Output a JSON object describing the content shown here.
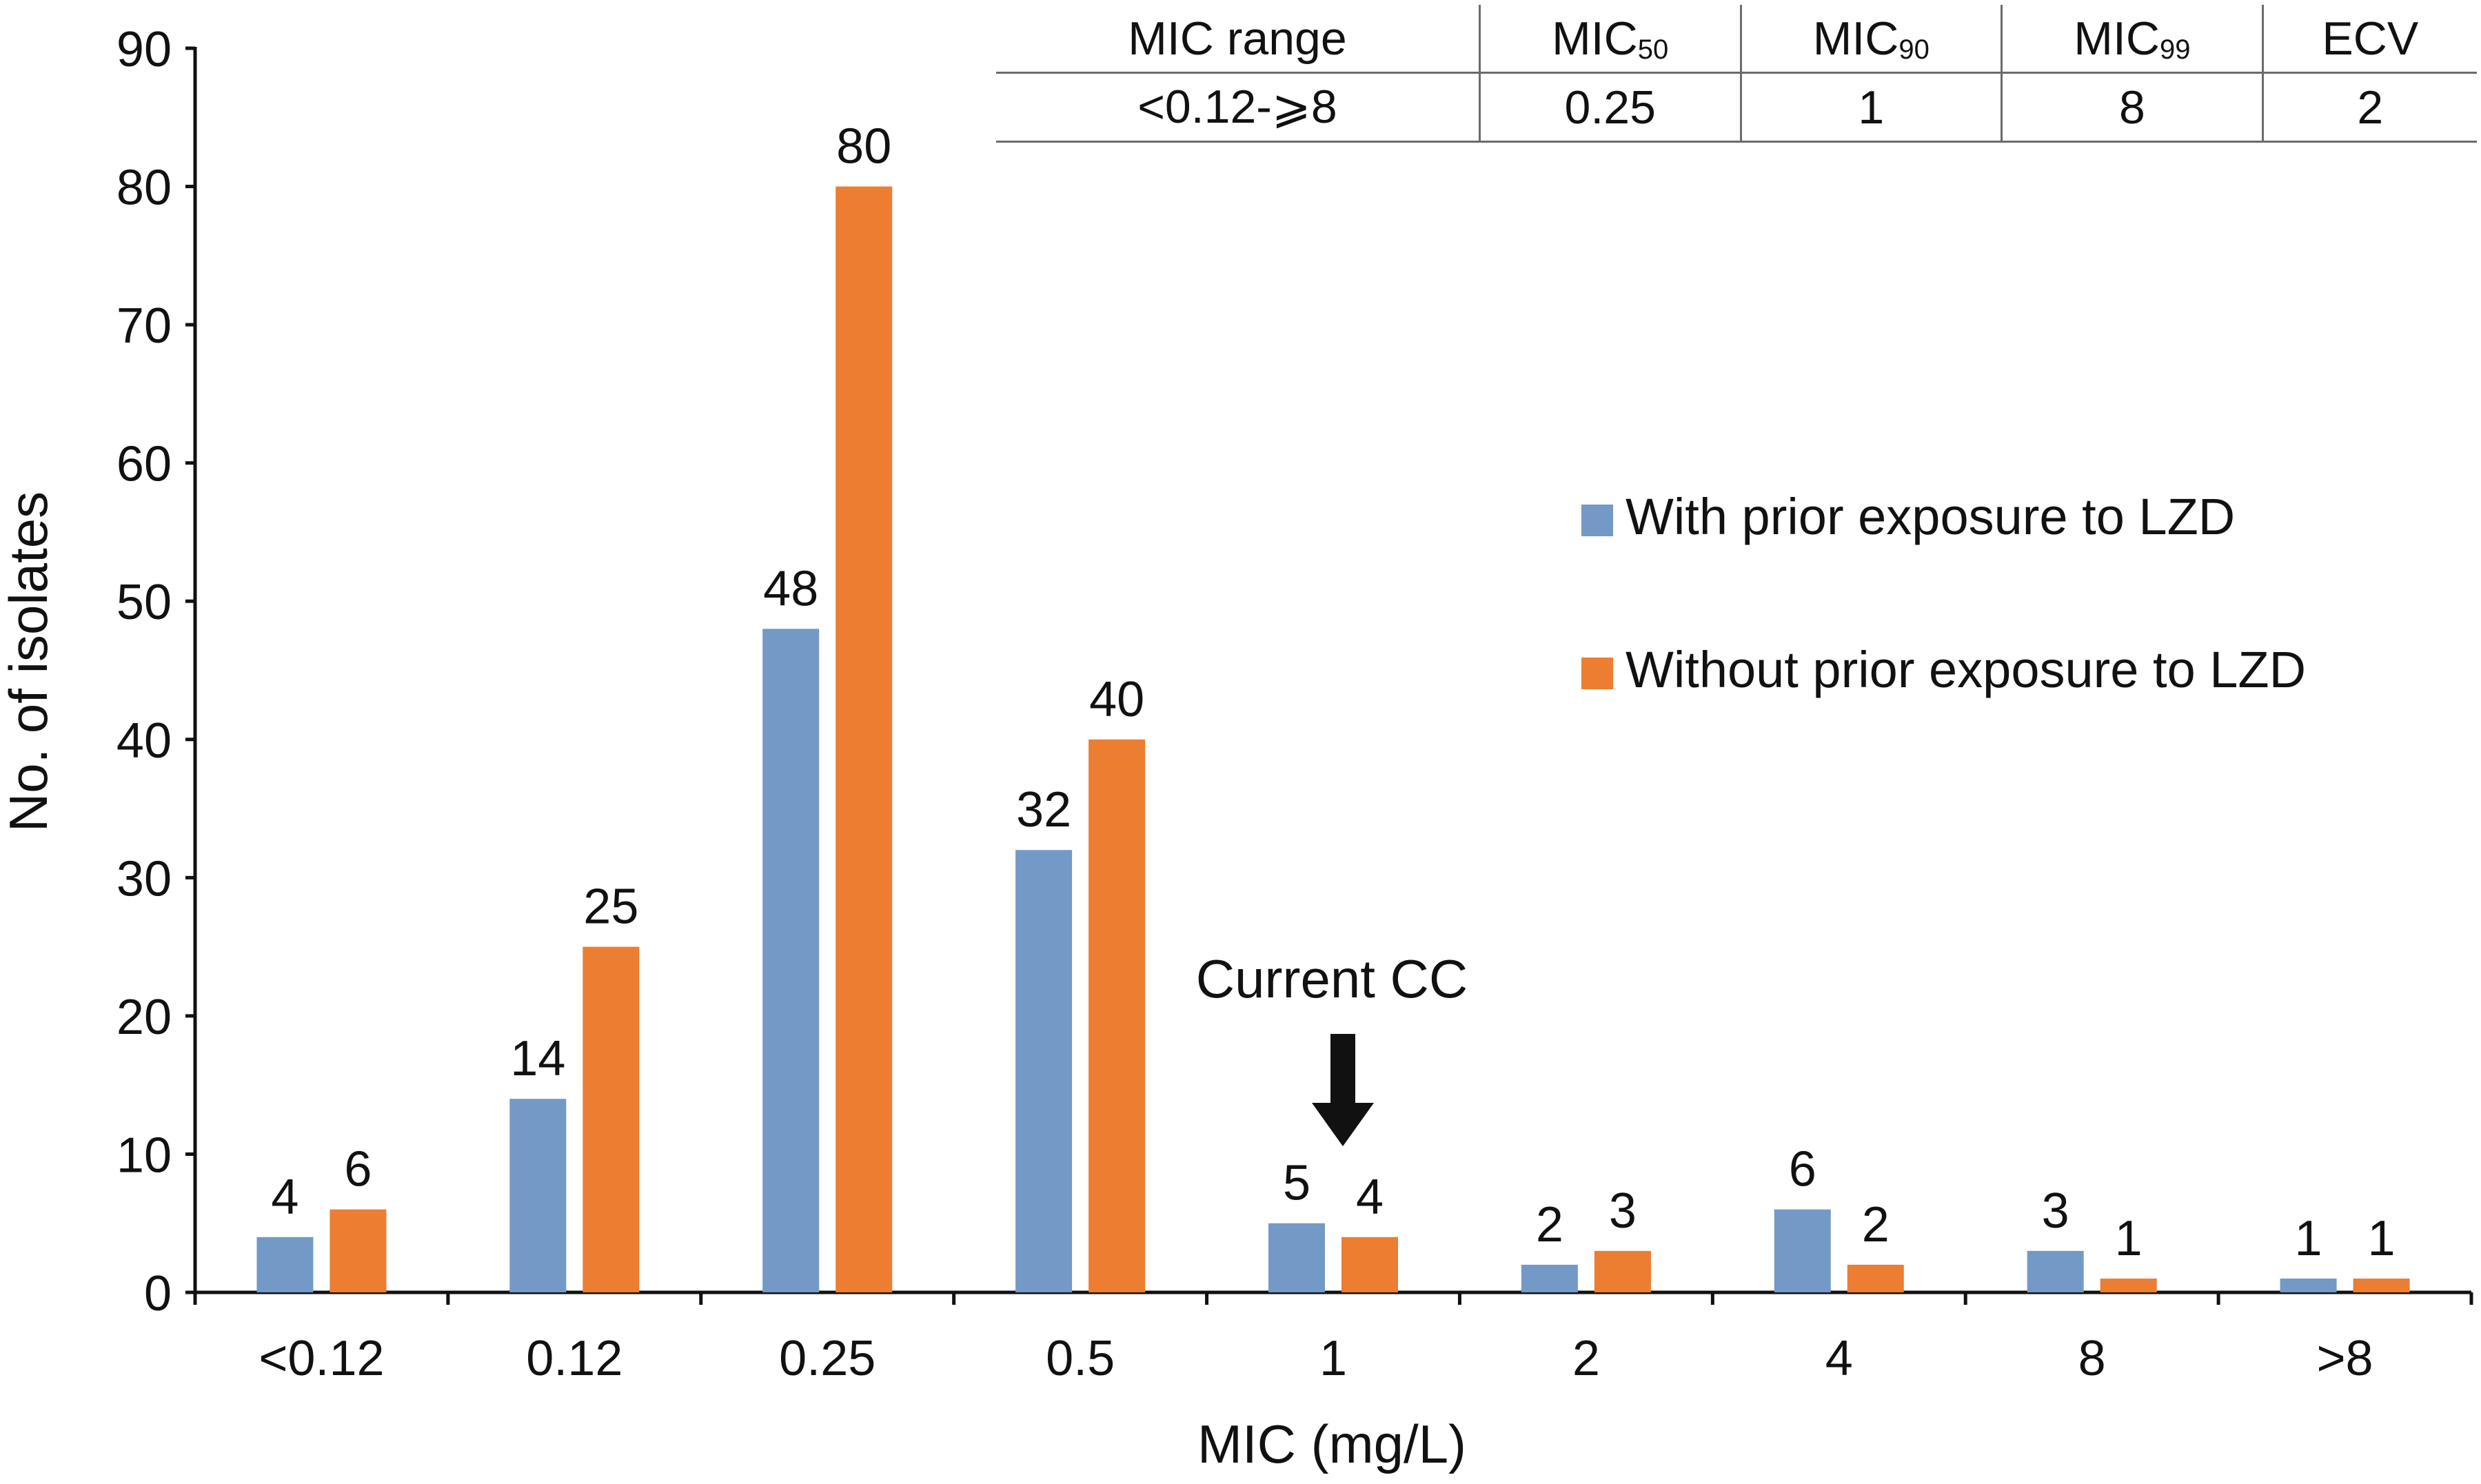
{
  "chart_data": {
    "type": "bar",
    "categories": [
      "<0.12",
      "0.12",
      "0.25",
      "0.5",
      "1",
      "2",
      "4",
      "8",
      ">8"
    ],
    "series": [
      {
        "name": "With prior exposure to LZD",
        "color": "#7399c6",
        "values": [
          4,
          14,
          48,
          32,
          5,
          2,
          6,
          3,
          1
        ]
      },
      {
        "name": "Without prior exposure to LZD",
        "color": "#ed7d31",
        "values": [
          6,
          25,
          80,
          40,
          4,
          3,
          2,
          1,
          1
        ]
      }
    ],
    "xlabel": "MIC (mg/L)",
    "ylabel": "No. of isolates",
    "ylim": [
      0,
      90
    ],
    "yticks": [
      0,
      10,
      20,
      30,
      40,
      50,
      60,
      70,
      80,
      90
    ],
    "grid": false,
    "legend": "right",
    "annotation": {
      "text": "Current CC",
      "category": "1"
    }
  },
  "summary_table": {
    "headers": [
      {
        "base": "MIC range",
        "sub": ""
      },
      {
        "base": "MIC",
        "sub": "50"
      },
      {
        "base": "MIC",
        "sub": "90"
      },
      {
        "base": "MIC",
        "sub": "99"
      },
      {
        "base": "ECV",
        "sub": ""
      }
    ],
    "values": [
      "<0.12-⩾8",
      "0.25",
      "1",
      "8",
      "2"
    ]
  }
}
